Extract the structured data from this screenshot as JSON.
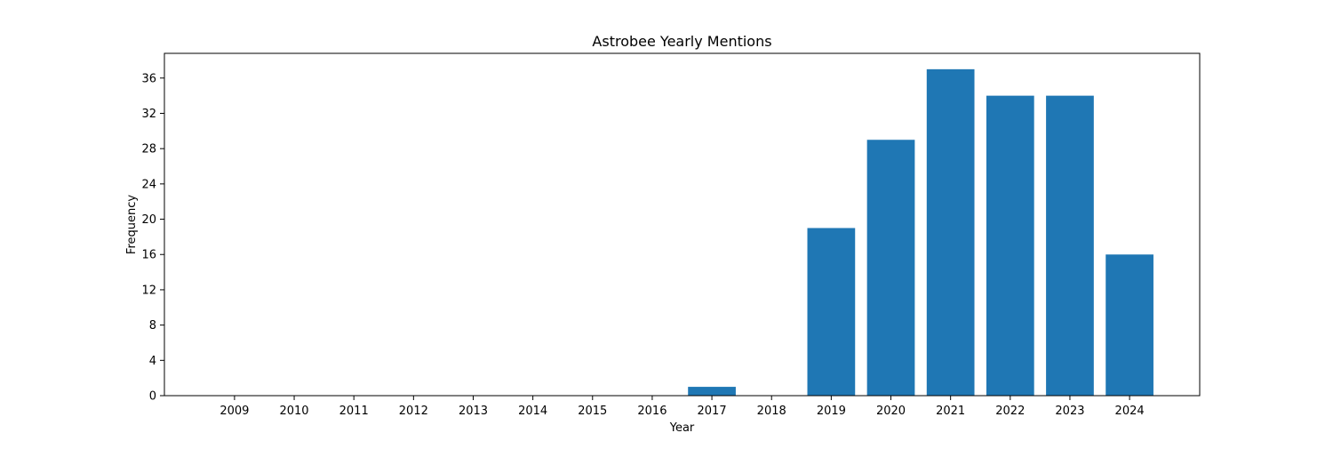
{
  "chart_data": {
    "type": "bar",
    "title": "Astrobee Yearly Mentions",
    "xlabel": "Year",
    "ylabel": "Frequency",
    "categories": [
      "2009",
      "2010",
      "2011",
      "2012",
      "2013",
      "2014",
      "2015",
      "2016",
      "2017",
      "2018",
      "2019",
      "2020",
      "2021",
      "2022",
      "2023",
      "2024"
    ],
    "values": [
      0,
      0,
      0,
      0,
      0,
      0,
      0,
      0,
      1,
      0,
      19,
      29,
      37,
      34,
      34,
      16
    ],
    "ylim": [
      0,
      38.8
    ],
    "yticks": [
      0,
      4,
      8,
      12,
      16,
      20,
      24,
      28,
      32,
      36
    ],
    "grid": false,
    "bar_color": "#1f77b4"
  }
}
